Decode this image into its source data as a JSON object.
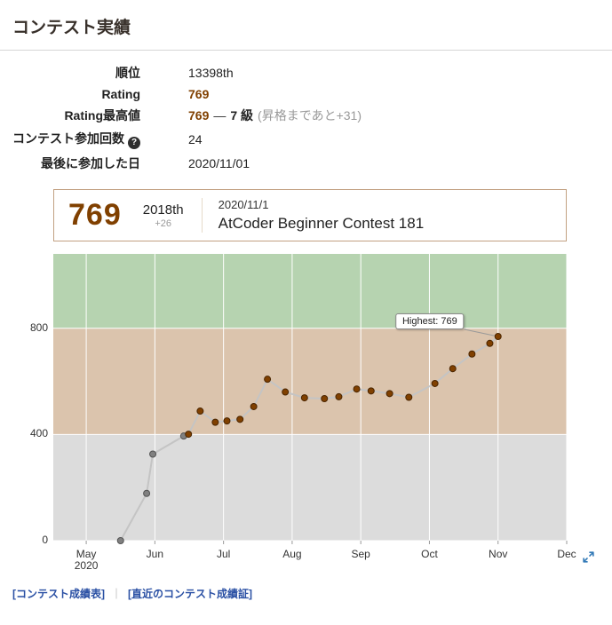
{
  "page": {
    "title": "コンテスト実績"
  },
  "stats": {
    "rank": {
      "label": "順位",
      "value": "13398th"
    },
    "rating": {
      "label": "Rating",
      "value": "769"
    },
    "highest": {
      "label": "Rating最高値",
      "value": "769",
      "dash": "—",
      "kyu": "7 級",
      "note": "(昇格まであと+31)"
    },
    "matches": {
      "label": "コンテスト参加回数",
      "help_icon": "?",
      "value": "24"
    },
    "last_competed": {
      "label": "最後に参加した日",
      "value": "2020/11/01"
    }
  },
  "latest_contest": {
    "new_rating": "769",
    "place": "2018th",
    "diff": "+26",
    "date": "2020/11/1",
    "name": "AtCoder Beginner Contest 181"
  },
  "chart_data": {
    "type": "line",
    "title": "Rating history",
    "x_axis": {
      "tick_labels": [
        "May",
        "Jun",
        "Jul",
        "Aug",
        "Sep",
        "Oct",
        "Nov",
        "Dec"
      ],
      "tick_positions_months": [
        0,
        1,
        2,
        3,
        4,
        5,
        6,
        7
      ],
      "year_label": "2020",
      "range_months": [
        -0.48,
        7.0
      ],
      "x_unit": "months_after_2020-05-01"
    },
    "y_axis": {
      "tick_values": [
        0,
        400,
        800
      ],
      "range": [
        0,
        1080
      ]
    },
    "bands": [
      {
        "from": 0,
        "to": 400,
        "color": "#dcdcdc"
      },
      {
        "from": 400,
        "to": 800,
        "color": "#dbc4ad"
      },
      {
        "from": 800,
        "to": 1080,
        "color": "#b6d3b0"
      }
    ],
    "series": [
      {
        "name": "Rating",
        "point_format": [
          "months_after_may_2020",
          "rating"
        ],
        "points": [
          [
            0.5,
            0
          ],
          [
            0.88,
            178
          ],
          [
            0.97,
            326
          ],
          [
            1.42,
            394
          ],
          [
            1.49,
            401
          ],
          [
            1.66,
            488
          ],
          [
            1.88,
            446
          ],
          [
            2.05,
            451
          ],
          [
            2.24,
            457
          ],
          [
            2.44,
            505
          ],
          [
            2.64,
            608
          ],
          [
            2.9,
            560
          ],
          [
            3.18,
            538
          ],
          [
            3.47,
            535
          ],
          [
            3.68,
            542
          ],
          [
            3.94,
            571
          ],
          [
            4.15,
            564
          ],
          [
            4.42,
            554
          ],
          [
            4.7,
            540
          ],
          [
            5.08,
            592
          ],
          [
            5.34,
            648
          ],
          [
            5.62,
            703
          ],
          [
            5.88,
            743
          ],
          [
            6.0,
            769
          ]
        ]
      }
    ],
    "styles": {
      "line_color": "#c4c4c4",
      "grid_color": "#ffffff",
      "threshold": 400,
      "point_fill_low": "#808080",
      "point_stroke_low": "#525252",
      "point_fill_high": "#804000",
      "point_stroke_high": "#4a2500",
      "tick_color": "#999999"
    },
    "tooltip": {
      "text": "Highest: 769",
      "attached_to": "last_point"
    }
  },
  "footer": {
    "links": [
      {
        "label": "[コンテスト成績表]"
      },
      {
        "label": "[直近のコンテスト成績証]"
      }
    ],
    "separator": "｜",
    "link_color": "#2a50a4"
  },
  "colors": {
    "rating_brown": "#804000",
    "muted_grey": "#999999",
    "expand_icon_blue": "#337ab7"
  }
}
